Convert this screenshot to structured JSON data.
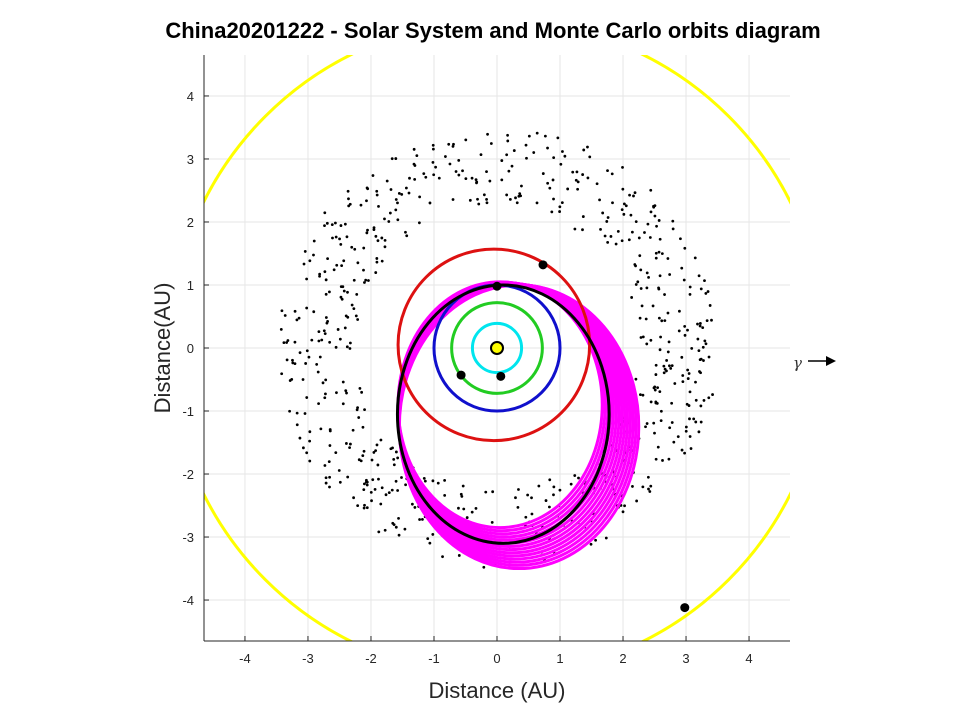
{
  "chart_data": {
    "type": "scatter",
    "title": "China20201222 - Solar System and Monte Carlo orbits diagram",
    "xlabel": "Distance (AU)",
    "ylabel": "Distance(AU)",
    "xlim": [
      -4.65,
      4.65
    ],
    "ylim": [
      -4.65,
      4.65
    ],
    "xticks": [
      -4,
      -3,
      -2,
      -1,
      0,
      1,
      2,
      3,
      4
    ],
    "yticks": [
      -4,
      -3,
      -2,
      -1,
      0,
      1,
      2,
      3,
      4
    ],
    "grid": true,
    "direction_marker": "γ",
    "sun": {
      "x": 0,
      "y": 0,
      "color": "#FFFF00"
    },
    "orbits": [
      {
        "kind": "planet",
        "color": "#00E5EE",
        "radius": 0.39,
        "center": [
          0,
          0
        ]
      },
      {
        "kind": "planet",
        "color": "#22CC22",
        "radius": 0.72,
        "center": [
          0,
          0
        ]
      },
      {
        "kind": "planet",
        "color": "#1010CC",
        "radius": 1.0,
        "center": [
          0,
          0
        ]
      },
      {
        "kind": "planet",
        "color": "#DD1111",
        "radius": 1.52,
        "center": [
          -0.05,
          0.05
        ]
      },
      {
        "kind": "planet",
        "color": "#FFFF00",
        "radius": 5.2,
        "center": [
          0,
          0
        ]
      },
      {
        "kind": "object",
        "color": "#000000",
        "cx": 0.1,
        "cy": -1.05,
        "rx": 1.68,
        "ry": 2.05
      }
    ],
    "planet_positions": [
      {
        "x": 0.0,
        "y": 0.98
      },
      {
        "x": 0.73,
        "y": 1.32
      },
      {
        "x": -0.57,
        "y": -0.43
      },
      {
        "x": 0.06,
        "y": -0.45
      },
      {
        "x": 2.98,
        "y": -4.12
      }
    ],
    "monte_carlo_orbits": {
      "color": "#FF00FF",
      "count": 14,
      "cx_range": [
        0.05,
        0.35
      ],
      "cy_range": [
        -1.25,
        -0.9
      ],
      "rx_range": [
        1.62,
        1.9
      ],
      "ry_range": [
        1.95,
        2.25
      ]
    },
    "asteroid_belt": {
      "color": "#000000",
      "inner_radius": 2.25,
      "outer_radius": 3.5,
      "count": 650
    }
  }
}
